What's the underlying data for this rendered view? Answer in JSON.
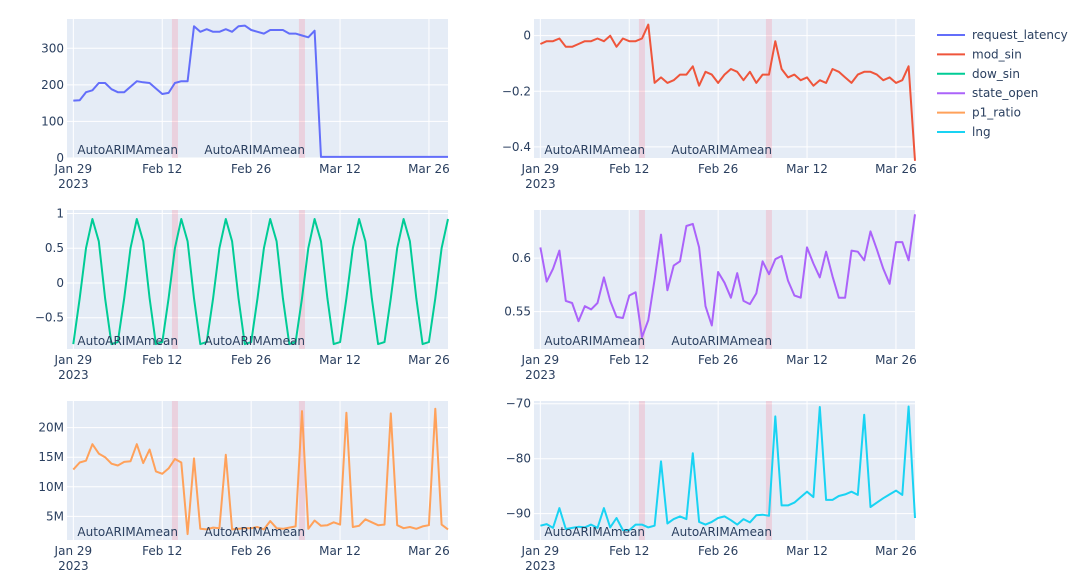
{
  "chart_data": {
    "type": "line",
    "grid": true,
    "x_dates": [
      "2023-01-29",
      "2023-01-30",
      "2023-01-31",
      "2023-02-01",
      "2023-02-02",
      "2023-02-03",
      "2023-02-04",
      "2023-02-05",
      "2023-02-06",
      "2023-02-07",
      "2023-02-08",
      "2023-02-09",
      "2023-02-10",
      "2023-02-11",
      "2023-02-12",
      "2023-02-13",
      "2023-02-14",
      "2023-02-15",
      "2023-02-16",
      "2023-02-17",
      "2023-02-18",
      "2023-02-19",
      "2023-02-20",
      "2023-02-21",
      "2023-02-22",
      "2023-02-23",
      "2023-02-24",
      "2023-02-25",
      "2023-02-26",
      "2023-02-27",
      "2023-02-28",
      "2023-03-01",
      "2023-03-02",
      "2023-03-03",
      "2023-03-04",
      "2023-03-05",
      "2023-03-06",
      "2023-03-07",
      "2023-03-08",
      "2023-03-09",
      "2023-03-10",
      "2023-03-11",
      "2023-03-12",
      "2023-03-13",
      "2023-03-14",
      "2023-03-15",
      "2023-03-16",
      "2023-03-17",
      "2023-03-18",
      "2023-03-19",
      "2023-03-20",
      "2023-03-21",
      "2023-03-22",
      "2023-03-23",
      "2023-03-24",
      "2023-03-25",
      "2023-03-26",
      "2023-03-27",
      "2023-03-28",
      "2023-03-29"
    ],
    "x_tick_labels": [
      "Jan 29",
      "Feb 12",
      "Feb 26",
      "Mar 12",
      "Mar 26"
    ],
    "x_tick_dates": [
      "2023-01-29",
      "2023-02-12",
      "2023-02-26",
      "2023-03-12",
      "2023-03-26"
    ],
    "x_year_label": "2023",
    "x_range": [
      "2023-01-28",
      "2023-03-29"
    ],
    "highlight_dates": [
      "2023-02-14",
      "2023-03-06"
    ],
    "annotations": [
      {
        "text": "AutoARIMAmean",
        "date": "2023-02-14"
      },
      {
        "text": "AutoARIMAmean",
        "date": "2023-03-06"
      }
    ],
    "legend_position": "top-right",
    "panels": [
      {
        "series_index": 0,
        "ylim": [
          0,
          380
        ],
        "y_ticks": [
          0,
          100,
          200,
          300
        ],
        "y_tick_labels": [
          "0",
          "100",
          "200",
          "300"
        ],
        "values": [
          157,
          158,
          180,
          185,
          205,
          205,
          188,
          180,
          180,
          195,
          210,
          207,
          205,
          190,
          175,
          178,
          205,
          210,
          210,
          360,
          345,
          352,
          345,
          345,
          352,
          345,
          360,
          362,
          350,
          345,
          340,
          350,
          350,
          350,
          340,
          340,
          335,
          330,
          348,
          3,
          3,
          3,
          3,
          3,
          3,
          3,
          3,
          3,
          3,
          3,
          3,
          3,
          3,
          3,
          3,
          3,
          3,
          3,
          3,
          3
        ]
      },
      {
        "series_index": 1,
        "ylim": [
          -0.44,
          0.06
        ],
        "y_ticks": [
          0,
          -0.2,
          -0.4
        ],
        "y_tick_labels": [
          "0",
          "−0.2",
          "−0.4"
        ],
        "values": [
          -0.03,
          -0.02,
          -0.02,
          -0.01,
          -0.04,
          -0.04,
          -0.03,
          -0.02,
          -0.02,
          -0.01,
          -0.02,
          0.0,
          -0.04,
          -0.01,
          -0.02,
          -0.02,
          -0.01,
          0.04,
          -0.17,
          -0.15,
          -0.17,
          -0.16,
          -0.14,
          -0.14,
          -0.11,
          -0.18,
          -0.13,
          -0.14,
          -0.17,
          -0.14,
          -0.12,
          -0.13,
          -0.16,
          -0.13,
          -0.17,
          -0.14,
          -0.14,
          -0.02,
          -0.12,
          -0.15,
          -0.14,
          -0.16,
          -0.15,
          -0.18,
          -0.16,
          -0.17,
          -0.12,
          -0.13,
          -0.15,
          -0.17,
          -0.14,
          -0.13,
          -0.13,
          -0.14,
          -0.16,
          -0.15,
          -0.17,
          -0.16,
          -0.11,
          -0.45
        ]
      },
      {
        "series_index": 2,
        "ylim": [
          -0.95,
          1.05
        ],
        "y_ticks": [
          1,
          0.5,
          0,
          -0.5
        ],
        "y_tick_labels": [
          "1",
          "0.5",
          "0",
          "−0.5"
        ],
        "values": [
          -0.88,
          -0.22,
          0.5,
          0.92,
          0.6,
          -0.22,
          -0.88,
          -0.85,
          -0.22,
          0.5,
          0.92,
          0.6,
          -0.22,
          -0.88,
          -0.85,
          -0.22,
          0.5,
          0.92,
          0.6,
          -0.22,
          -0.88,
          -0.85,
          -0.22,
          0.5,
          0.92,
          0.6,
          -0.22,
          -0.88,
          -0.85,
          -0.22,
          0.5,
          0.92,
          0.6,
          -0.22,
          -0.88,
          -0.85,
          -0.22,
          0.5,
          0.92,
          0.6,
          -0.22,
          -0.88,
          -0.85,
          -0.22,
          0.5,
          0.92,
          0.6,
          -0.22,
          -0.88,
          -0.85,
          -0.22,
          0.5,
          0.92,
          0.6,
          -0.22,
          -0.88,
          -0.85,
          -0.22,
          0.5,
          0.92
        ]
      },
      {
        "series_index": 3,
        "ylim": [
          0.515,
          0.645
        ],
        "y_ticks": [
          0.6,
          0.55
        ],
        "y_tick_labels": [
          "0.6",
          "0.55"
        ],
        "values": [
          0.61,
          0.578,
          0.59,
          0.607,
          0.56,
          0.558,
          0.541,
          0.555,
          0.552,
          0.558,
          0.582,
          0.56,
          0.545,
          0.544,
          0.565,
          0.568,
          0.526,
          0.542,
          0.58,
          0.622,
          0.57,
          0.593,
          0.597,
          0.63,
          0.632,
          0.61,
          0.555,
          0.537,
          0.587,
          0.577,
          0.563,
          0.586,
          0.56,
          0.557,
          0.567,
          0.597,
          0.585,
          0.599,
          0.602,
          0.579,
          0.565,
          0.563,
          0.61,
          0.595,
          0.582,
          0.606,
          0.583,
          0.563,
          0.563,
          0.607,
          0.606,
          0.598,
          0.625,
          0.608,
          0.59,
          0.576,
          0.615,
          0.615,
          0.598,
          0.641
        ]
      },
      {
        "series_index": 4,
        "ylim": [
          1000000,
          24500000
        ],
        "y_ticks": [
          5000000,
          10000000,
          15000000,
          20000000
        ],
        "y_tick_labels": [
          "5M",
          "10M",
          "15M",
          "20M"
        ],
        "values": [
          12900000,
          14100000,
          14400000,
          17200000,
          15600000,
          15000000,
          13900000,
          13600000,
          14200000,
          14300000,
          17200000,
          14000000,
          16300000,
          12600000,
          12200000,
          13100000,
          14700000,
          14100000,
          2000000,
          14800000,
          2900000,
          2800000,
          3100000,
          3000000,
          15400000,
          2800000,
          2900000,
          3000000,
          3000000,
          3200000,
          2800000,
          4200000,
          3000000,
          2900000,
          3100000,
          3300000,
          22800000,
          2900000,
          4300000,
          3400000,
          3500000,
          4000000,
          3600000,
          22500000,
          3200000,
          3400000,
          4500000,
          4000000,
          3500000,
          3600000,
          22400000,
          3500000,
          3000000,
          3200000,
          2900000,
          3300000,
          3500000,
          23200000,
          3600000,
          2800000
        ]
      },
      {
        "series_index": 5,
        "ylim": [
          -94.8,
          -69.5
        ],
        "y_ticks": [
          -70,
          -80,
          -90
        ],
        "y_tick_labels": [
          "−70",
          "−80",
          "−90"
        ],
        "values": [
          -92.2,
          -91.9,
          -92.6,
          -89.0,
          -92.8,
          -92.6,
          -92.4,
          -92.5,
          -92.0,
          -92.6,
          -89.0,
          -92.5,
          -90.8,
          -93.0,
          -93.0,
          -92.0,
          -92.0,
          -92.5,
          -92.2,
          -80.5,
          -91.8,
          -91.0,
          -90.5,
          -91.0,
          -79.0,
          -91.5,
          -92.0,
          -91.5,
          -90.8,
          -90.5,
          -91.2,
          -92.0,
          -91.0,
          -91.6,
          -90.3,
          -90.2,
          -90.4,
          -72.3,
          -88.5,
          -88.5,
          -88.0,
          -87.0,
          -86.0,
          -87.0,
          -70.6,
          -87.5,
          -87.5,
          -86.8,
          -86.5,
          -86.0,
          -86.6,
          -72.0,
          -88.8,
          -88.0,
          -87.2,
          -86.5,
          -85.8,
          -86.6,
          -70.5,
          -90.8
        ]
      }
    ],
    "series": [
      {
        "name": "request_latency",
        "color": "#636efa"
      },
      {
        "name": "mod_sin",
        "color": "#EF553B"
      },
      {
        "name": "dow_sin",
        "color": "#00cc96"
      },
      {
        "name": "state_open",
        "color": "#ab63fa"
      },
      {
        "name": "p1_ratio",
        "color": "#FFA15A"
      },
      {
        "name": "lng",
        "color": "#19d3f3"
      }
    ]
  }
}
